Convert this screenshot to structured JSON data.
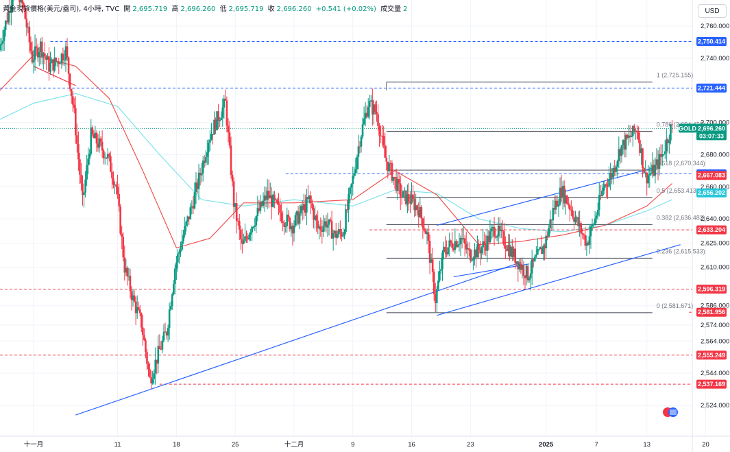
{
  "header": {
    "symbol_title": "黃金現貨價格(美元/盎司), 4小時, TVC",
    "open_label": "開",
    "open_value": "2,695.719",
    "high_label": "高",
    "high_value": "2,696.260",
    "low_label": "低",
    "low_value": "2,695.719",
    "close_label": "收",
    "close_value": "2,696.260",
    "change": "+0.541 (+0.02%)",
    "volume_label": "成交量"
  },
  "currency_button": "USD",
  "chart_data": {
    "type": "candlestick",
    "title": "黃金現貨價格(美元/盎司), 4小時, TVC",
    "ylim": [
      2514,
      2790
    ],
    "y_ticks": [
      2760,
      2740,
      2700,
      2680,
      2660,
      2640,
      2625,
      2610,
      2586,
      2574,
      2564,
      2544,
      2524
    ],
    "y_tick_labels": [
      "2,760.000",
      "2,740.000",
      "2,700.000",
      "2,680.000",
      "2,660.000",
      "2,640.000",
      "2,625.000",
      "2,610.000",
      "2,586.000",
      "2,574.000",
      "2,564.000",
      "2,544.000",
      "2,524.000"
    ],
    "x_ticks": [
      {
        "label": "十一月",
        "date": "2024-11-01"
      },
      {
        "label": "11",
        "date": "2024-11-11"
      },
      {
        "label": "18",
        "date": "2024-11-18"
      },
      {
        "label": "25",
        "date": "2024-11-25"
      },
      {
        "label": "十二月",
        "date": "2024-12-02"
      },
      {
        "label": "9",
        "date": "2024-12-09"
      },
      {
        "label": "16",
        "date": "2024-12-16"
      },
      {
        "label": "23",
        "date": "2024-12-23"
      },
      {
        "label": "2025",
        "date": "2025-01-01"
      },
      {
        "label": "7",
        "date": "2025-01-07"
      },
      {
        "label": "13",
        "date": "2025-01-13"
      },
      {
        "label": "20",
        "date": "2025-01-20"
      }
    ],
    "x_range": [
      "2024-10-28",
      "2025-01-22"
    ],
    "price_path": [
      [
        "2024-10-28",
        2745
      ],
      [
        "2024-10-29",
        2765
      ],
      [
        "2024-10-30",
        2788
      ],
      [
        "2024-10-31",
        2770
      ],
      [
        "2024-11-01",
        2740
      ],
      [
        "2024-11-02",
        2748
      ],
      [
        "2024-11-03",
        2735
      ],
      [
        "2024-11-04",
        2738
      ],
      [
        "2024-11-05",
        2745
      ],
      [
        "2024-11-06",
        2705
      ],
      [
        "2024-11-07",
        2650
      ],
      [
        "2024-11-08",
        2692
      ],
      [
        "2024-11-09",
        2686
      ],
      [
        "2024-11-10",
        2678
      ],
      [
        "2024-11-11",
        2660
      ],
      [
        "2024-11-12",
        2610
      ],
      [
        "2024-11-13",
        2590
      ],
      [
        "2024-11-14",
        2575
      ],
      [
        "2024-11-15",
        2540
      ],
      [
        "2024-11-16",
        2556
      ],
      [
        "2024-11-17",
        2570
      ],
      [
        "2024-11-18",
        2610
      ],
      [
        "2024-11-19",
        2630
      ],
      [
        "2024-11-20",
        2648
      ],
      [
        "2024-11-21",
        2668
      ],
      [
        "2024-11-22",
        2690
      ],
      [
        "2024-11-23",
        2702
      ],
      [
        "2024-11-24",
        2712
      ],
      [
        "2024-11-25",
        2650
      ],
      [
        "2024-11-26",
        2622
      ],
      [
        "2024-11-27",
        2635
      ],
      [
        "2024-11-28",
        2645
      ],
      [
        "2024-11-29",
        2655
      ],
      [
        "2024-11-30",
        2648
      ],
      [
        "2024-12-01",
        2640
      ],
      [
        "2024-12-02",
        2636
      ],
      [
        "2024-12-03",
        2644
      ],
      [
        "2024-12-04",
        2652
      ],
      [
        "2024-12-05",
        2634
      ],
      [
        "2024-12-06",
        2638
      ],
      [
        "2024-12-07",
        2630
      ],
      [
        "2024-12-08",
        2632
      ],
      [
        "2024-12-09",
        2660
      ],
      [
        "2024-12-10",
        2690
      ],
      [
        "2024-12-11",
        2712
      ],
      [
        "2024-12-12",
        2706
      ],
      [
        "2024-12-13",
        2678
      ],
      [
        "2024-12-14",
        2666
      ],
      [
        "2024-12-15",
        2654
      ],
      [
        "2024-12-16",
        2652
      ],
      [
        "2024-12-17",
        2646
      ],
      [
        "2024-12-18",
        2630
      ],
      [
        "2024-12-19",
        2590
      ],
      [
        "2024-12-20",
        2620
      ],
      [
        "2024-12-21",
        2625
      ],
      [
        "2024-12-22",
        2628
      ],
      [
        "2024-12-23",
        2618
      ],
      [
        "2024-12-24",
        2620
      ],
      [
        "2024-12-25",
        2625
      ],
      [
        "2024-12-26",
        2634
      ],
      [
        "2024-12-27",
        2628
      ],
      [
        "2024-12-28",
        2620
      ],
      [
        "2024-12-29",
        2612
      ],
      [
        "2024-12-30",
        2605
      ],
      [
        "2024-12-31",
        2615
      ],
      [
        "2025-01-01",
        2624
      ],
      [
        "2025-01-02",
        2645
      ],
      [
        "2025-01-03",
        2658
      ],
      [
        "2025-01-04",
        2648
      ],
      [
        "2025-01-05",
        2636
      ],
      [
        "2025-01-06",
        2625
      ],
      [
        "2025-01-07",
        2640
      ],
      [
        "2025-01-08",
        2660
      ],
      [
        "2025-01-09",
        2668
      ],
      [
        "2025-01-10",
        2684
      ],
      [
        "2025-01-11",
        2690
      ],
      [
        "2025-01-12",
        2696
      ],
      [
        "2025-01-13",
        2666
      ],
      [
        "2025-01-14",
        2670
      ],
      [
        "2025-01-15",
        2680
      ],
      [
        "2025-01-16",
        2696
      ]
    ],
    "ma_red": [
      [
        "2024-10-28",
        2720
      ],
      [
        "2024-11-01",
        2742
      ],
      [
        "2024-11-06",
        2735
      ],
      [
        "2024-11-10",
        2715
      ],
      [
        "2024-11-14",
        2670
      ],
      [
        "2024-11-18",
        2622
      ],
      [
        "2024-11-22",
        2628
      ],
      [
        "2024-11-26",
        2650
      ],
      [
        "2024-12-02",
        2650
      ],
      [
        "2024-12-09",
        2652
      ],
      [
        "2024-12-14",
        2670
      ],
      [
        "2024-12-19",
        2655
      ],
      [
        "2024-12-24",
        2624
      ],
      [
        "2024-12-29",
        2626
      ],
      [
        "2025-01-03",
        2630
      ],
      [
        "2025-01-08",
        2636
      ],
      [
        "2025-01-13",
        2648
      ],
      [
        "2025-01-16",
        2662
      ]
    ],
    "ma_cyan": [
      [
        "2024-10-28",
        2702
      ],
      [
        "2024-11-01",
        2712
      ],
      [
        "2024-11-06",
        2718
      ],
      [
        "2024-11-11",
        2710
      ],
      [
        "2024-11-16",
        2680
      ],
      [
        "2024-11-21",
        2652
      ],
      [
        "2024-11-26",
        2648
      ],
      [
        "2024-12-02",
        2652
      ],
      [
        "2024-12-09",
        2648
      ],
      [
        "2024-12-14",
        2658
      ],
      [
        "2024-12-19",
        2656
      ],
      [
        "2024-12-24",
        2640
      ],
      [
        "2024-12-29",
        2634
      ],
      [
        "2025-01-03",
        2632
      ],
      [
        "2025-01-08",
        2636
      ],
      [
        "2025-01-13",
        2645
      ],
      [
        "2025-01-16",
        2652
      ]
    ],
    "current_price_line": 2696.26,
    "fib_levels": [
      {
        "label": "1 (2,725.155)",
        "value": 2725.155
      },
      {
        "label": "0.786 (2,694.459)",
        "value": 2694.459
      },
      {
        "label": "0.618 (2,670.344)",
        "value": 2670.344
      },
      {
        "label": "0.5 (2,653.413)",
        "value": 2653.413
      },
      {
        "label": "0.382 (2,636.482)",
        "value": 2636.482
      },
      {
        "label": "0.236 (2,615.533)",
        "value": 2615.533
      },
      {
        "label": "0 (2,581.671)",
        "value": 2581.671
      }
    ],
    "fib_range": [
      "2024-12-13",
      "2025-01-13"
    ],
    "horizontal_lines": [
      {
        "value": 2750.414,
        "label": "2,750.414",
        "color": "#2962ff",
        "start": "2024-11-03"
      },
      {
        "value": 2721.444,
        "label": "2,721.444",
        "color": "#2962ff",
        "start": "2024-10-28"
      },
      {
        "value": 2668.007,
        "label": "2,668.007",
        "color": "#2962ff",
        "start": "2024-12-01"
      },
      {
        "value": 2633.204,
        "label": "2,633.204",
        "color": "#f23645",
        "start": "2024-12-11"
      },
      {
        "value": 2596.319,
        "label": "2,596.319",
        "color": "#f23645",
        "start": "2024-10-28"
      },
      {
        "value": 2581.956,
        "label": "2,581.956",
        "color": "#f23645",
        "start": "2025-01-18"
      },
      {
        "value": 2555.249,
        "label": "2,555.249",
        "color": "#f23645",
        "start": "2024-10-28"
      },
      {
        "value": 2537.169,
        "label": "2,537.169",
        "color": "#f23645",
        "start": "2024-11-16"
      }
    ],
    "trendlines": [
      {
        "from": [
          "2024-11-01",
          2735
        ],
        "to": [
          "2024-11-06",
          2723
        ],
        "color": "#f23645"
      },
      {
        "from": [
          "2024-11-06",
          2518
        ],
        "to": [
          "2024-12-29",
          2613
        ],
        "color": "#2962ff"
      },
      {
        "from": [
          "2024-12-19",
          2580
        ],
        "to": [
          "2025-01-17",
          2624
        ],
        "color": "#2962ff"
      },
      {
        "from": [
          "2024-12-19",
          2636
        ],
        "to": [
          "2025-01-14",
          2672
        ],
        "color": "#2962ff"
      },
      {
        "from": [
          "2024-12-21",
          2604
        ],
        "to": [
          "2024-12-30",
          2612
        ],
        "color": "#2962ff"
      }
    ],
    "price_tags": [
      {
        "label": "2,667.083",
        "value": 2667.083,
        "color": "#f23645"
      },
      {
        "label": "2,656.202",
        "value": 2656.202,
        "color": "#26c6da"
      }
    ],
    "current_tag": {
      "symbol": "GOLD",
      "price": "2,696.260",
      "countdown": "03:07:33",
      "color": "#089981"
    }
  }
}
